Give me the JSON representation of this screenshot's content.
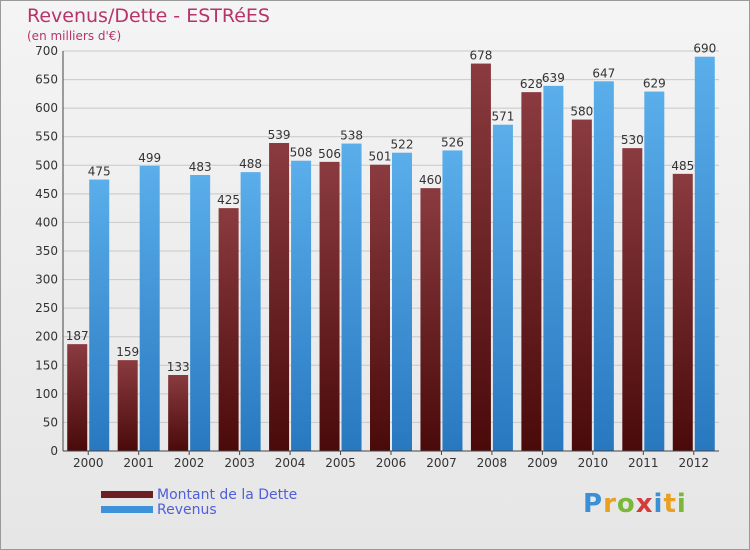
{
  "title": "Revenus/Dette - ESTRéES",
  "subtitle": "(en milliers d'€)",
  "colors": {
    "debt_top": "#8a3b3f",
    "debt_bottom": "#4a0a0a",
    "revenue_top": "#5aaeea",
    "revenue_bottom": "#2878c0",
    "title": "#b8336a",
    "legend_text": "#4e5fd8"
  },
  "legend": {
    "placement": "bottom-left",
    "items": [
      {
        "label": "Montant de la Dette",
        "color": "#6b1f22"
      },
      {
        "label": "Revenus",
        "color": "#3d92d9"
      }
    ]
  },
  "logo": {
    "letters": [
      {
        "ch": "P",
        "color": "#3b8fd4"
      },
      {
        "ch": "r",
        "color": "#e8a020"
      },
      {
        "ch": "o",
        "color": "#7ab83a"
      },
      {
        "ch": "x",
        "color": "#d43b3b"
      },
      {
        "ch": "i",
        "color": "#3b8fd4"
      },
      {
        "ch": "t",
        "color": "#e8a020"
      },
      {
        "ch": "i",
        "color": "#7ab83a"
      }
    ]
  },
  "chart_data": {
    "type": "bar",
    "title": "Revenus/Dette - ESTRéES",
    "subtitle": "(en milliers d'€)",
    "xlabel": "",
    "ylabel": "",
    "categories": [
      "2000",
      "2001",
      "2002",
      "2003",
      "2004",
      "2005",
      "2006",
      "2007",
      "2008",
      "2009",
      "2010",
      "2011",
      "2012"
    ],
    "series": [
      {
        "name": "Montant de la Dette",
        "values": [
          187,
          159,
          133,
          425,
          539,
          506,
          501,
          460,
          678,
          628,
          580,
          530,
          485
        ]
      },
      {
        "name": "Revenus",
        "values": [
          475,
          499,
          483,
          488,
          508,
          538,
          522,
          526,
          571,
          639,
          647,
          629,
          690
        ]
      }
    ],
    "ylim": [
      0,
      700
    ],
    "yticks": [
      0,
      50,
      100,
      150,
      200,
      250,
      300,
      350,
      400,
      450,
      500,
      550,
      600,
      650,
      700
    ],
    "grid": true
  }
}
